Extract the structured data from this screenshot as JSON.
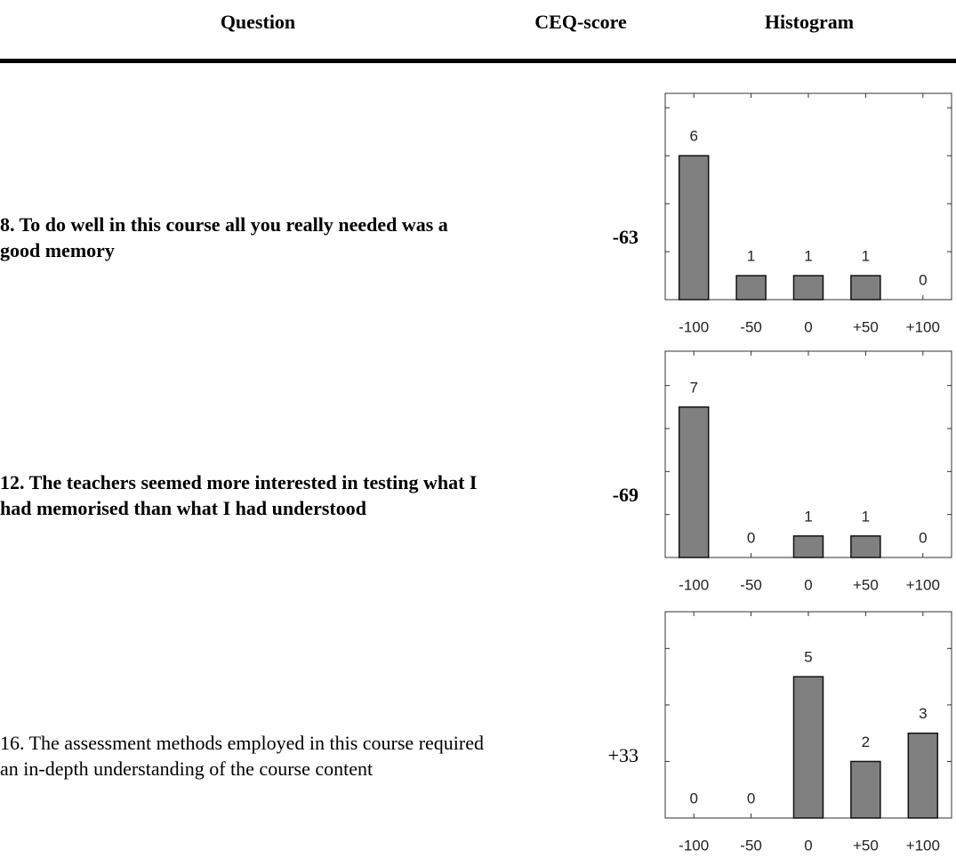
{
  "header": {
    "columns": [
      "Question",
      "CEQ-score",
      "Histogram"
    ]
  },
  "rows": [
    {
      "question": "8. To do well in this course all you really needed was a good memory",
      "score": "-63",
      "bold": true,
      "histogram": {
        "type": "bar",
        "categories": [
          "-100",
          "-50",
          "0",
          "+50",
          "+100"
        ],
        "values": [
          6,
          1,
          1,
          1,
          0
        ],
        "ylim": [
          0,
          8.6
        ],
        "yticks": [
          0,
          2,
          4,
          6,
          8
        ],
        "color": "#808080"
      }
    },
    {
      "question": "12. The teachers seemed more interested in testing what I had memorised than what I had understood",
      "score": "-69",
      "bold": true,
      "histogram": {
        "type": "bar",
        "categories": [
          "-100",
          "-50",
          "0",
          "+50",
          "+100"
        ],
        "values": [
          7,
          0,
          1,
          1,
          0
        ],
        "ylim": [
          0,
          9.6
        ],
        "yticks": [
          0,
          2,
          4,
          6,
          8
        ],
        "color": "#808080"
      }
    },
    {
      "question": "16. The assessment methods employed in this course required an in-depth understanding of the course content",
      "score": "+33",
      "bold": false,
      "histogram": {
        "type": "bar",
        "categories": [
          "-100",
          "-50",
          "0",
          "+50",
          "+100"
        ],
        "values": [
          0,
          0,
          5,
          2,
          3
        ],
        "ylim": [
          0,
          7.3
        ],
        "yticks": [
          0,
          2,
          4,
          6
        ],
        "color": "#808080"
      }
    }
  ]
}
